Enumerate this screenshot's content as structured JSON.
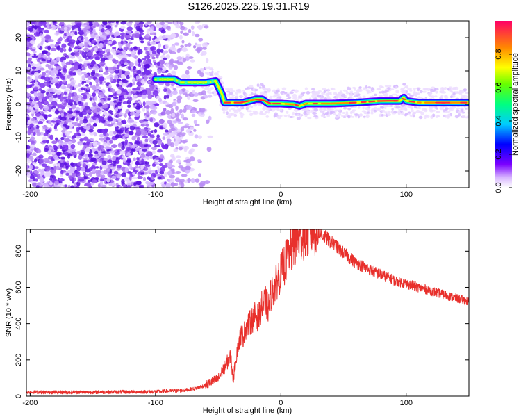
{
  "title": "S126.2025.225.19.31.R19",
  "chart_data": [
    {
      "type": "heatmap",
      "xlabel": "Height of straight line (km)",
      "ylabel": "Frequency (Hz)",
      "xlim": [
        -203,
        150
      ],
      "ylim": [
        -25,
        25
      ],
      "xticks": [
        -200,
        -100,
        0,
        100
      ],
      "yticks": [
        -20,
        -10,
        0,
        10,
        20
      ],
      "colorbar": {
        "label": "Normalized spectral amplitude",
        "range": [
          0,
          1
        ],
        "ticks": [
          0.0,
          0.2,
          0.4,
          0.6,
          0.8
        ]
      },
      "ridge": {
        "x": [
          -100,
          -85,
          -80,
          -60,
          -52,
          -47,
          -45,
          -40,
          -30,
          -20,
          -15,
          -10,
          0,
          10,
          15,
          20,
          40,
          60,
          80,
          95,
          98,
          100,
          110,
          150
        ],
        "y": [
          7.5,
          7.5,
          6.5,
          6.5,
          7.0,
          3.0,
          0.5,
          0.5,
          0.5,
          1.5,
          1.5,
          0.2,
          0.2,
          0.0,
          -0.5,
          0.2,
          0.2,
          0.5,
          1.0,
          1.0,
          2.0,
          1.0,
          0.5,
          0.5
        ]
      }
    },
    {
      "type": "line",
      "xlabel": "Height of straight line (km)",
      "ylabel": "SNR (10 * v/v)",
      "xlim": [
        -203,
        150
      ],
      "ylim": [
        0,
        920
      ],
      "xticks": [
        -200,
        -100,
        0,
        100
      ],
      "yticks": [
        0,
        200,
        400,
        600,
        800
      ],
      "series": [
        {
          "name": "SNR",
          "color": "#e8302c",
          "x": [
            -203,
            -150,
            -100,
            -80,
            -70,
            -60,
            -55,
            -50,
            -45,
            -40,
            -38,
            -35,
            -32,
            -30,
            -28,
            -25,
            -20,
            -18,
            -15,
            -12,
            -10,
            -8,
            -5,
            -3,
            0,
            5,
            10,
            15,
            20,
            25,
            30,
            35,
            40,
            50,
            60,
            70,
            80,
            90,
            100,
            120,
            140,
            150
          ],
          "y": [
            22,
            22,
            25,
            30,
            40,
            60,
            80,
            95,
            160,
            220,
            90,
            250,
            340,
            330,
            380,
            400,
            450,
            430,
            500,
            520,
            480,
            560,
            600,
            640,
            680,
            760,
            830,
            870,
            895,
            910,
            900,
            880,
            850,
            790,
            735,
            700,
            670,
            640,
            620,
            580,
            540,
            520
          ]
        }
      ]
    }
  ]
}
